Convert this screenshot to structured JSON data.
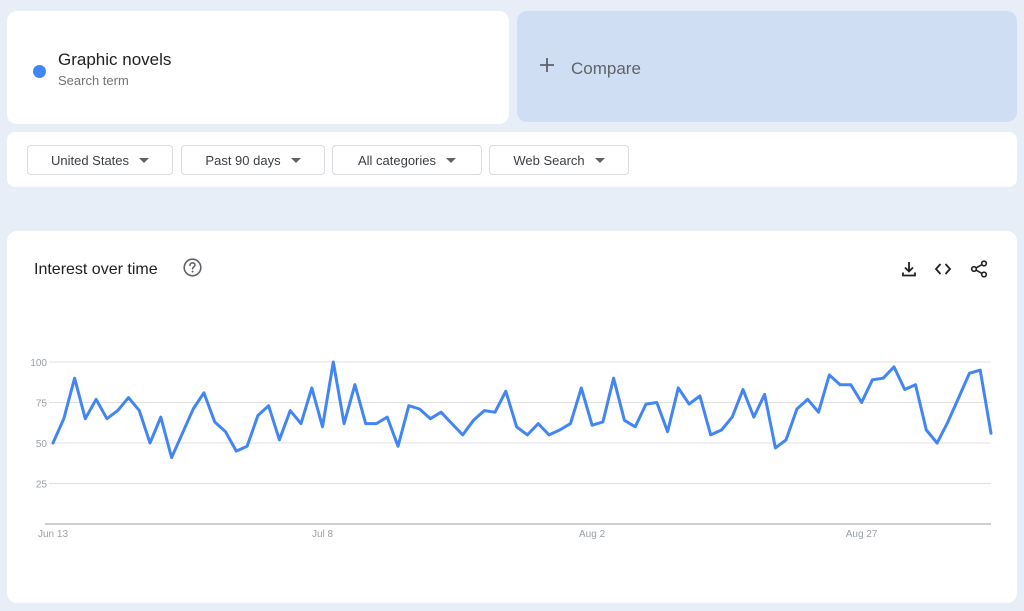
{
  "search_term": {
    "name": "Graphic novels",
    "subtitle": "Search term",
    "color": "#4285f4"
  },
  "compare": {
    "label": "Compare",
    "icon": "plus-icon"
  },
  "filters": [
    {
      "label": "United States"
    },
    {
      "label": "Past 90 days"
    },
    {
      "label": "All categories"
    },
    {
      "label": "Web Search"
    }
  ],
  "card": {
    "title": "Interest over time",
    "icons": [
      "help-icon",
      "download-icon",
      "embed-icon",
      "share-icon"
    ]
  },
  "chart_data": {
    "type": "line",
    "title": "",
    "xlabel": "",
    "ylabel": "",
    "ylim": [
      0,
      100
    ],
    "y_ticks": [
      25,
      50,
      75,
      100
    ],
    "x_tick_labels": [
      {
        "label": "Jun 13",
        "index": 0
      },
      {
        "label": "Jul 8",
        "index": 25
      },
      {
        "label": "Aug 2",
        "index": 50
      },
      {
        "label": "Aug 27",
        "index": 75
      }
    ],
    "grid": true,
    "legend": "none",
    "series": [
      {
        "color": "#4285f4",
        "values": [
          50,
          65,
          90,
          65,
          77,
          65,
          70,
          78,
          70,
          50,
          66,
          41,
          56,
          71,
          81,
          63,
          57,
          45,
          48,
          67,
          73,
          52,
          70,
          62,
          84,
          60,
          100,
          62,
          86,
          62,
          62,
          66,
          48,
          73,
          71,
          65,
          69,
          62,
          55,
          64,
          70,
          69,
          82,
          60,
          55,
          62,
          55,
          58,
          62,
          84,
          61,
          63,
          90,
          64,
          60,
          74,
          75,
          57,
          84,
          74,
          79,
          55,
          58,
          66,
          83,
          66,
          80,
          47,
          52,
          71,
          77,
          69,
          92,
          86,
          86,
          75,
          89,
          90,
          97,
          83,
          86,
          58,
          50,
          63,
          78,
          93,
          95,
          56
        ]
      }
    ]
  }
}
